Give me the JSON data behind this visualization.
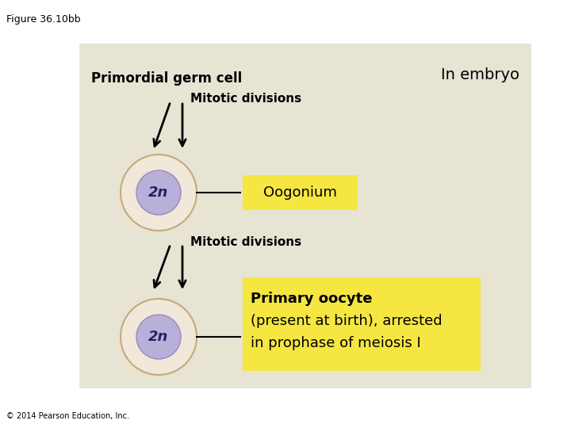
{
  "figure_label": "Figure 36.10bb",
  "copyright": "© 2014 Pearson Education, Inc.",
  "background_color": "#e8e4d4",
  "yellow_box_color": "#f5e642",
  "title_text": "In embryo",
  "label1": "Primordial germ cell",
  "label2": "Mitotic divisions",
  "label3": "Oogonium",
  "label4": "Mitotic divisions",
  "label5_line1": "Primary oocyte",
  "label5_line2": "(present at birth), arrested",
  "label5_line3": "in prophase of meiosis I",
  "cell_2n_text": "2n",
  "cell_outer_color": "#f0e8d8",
  "cell_inner_color": "#b8b0d8",
  "cell_outer_edge": "#c8a878",
  "cell_inner_edge": "#9888c0"
}
